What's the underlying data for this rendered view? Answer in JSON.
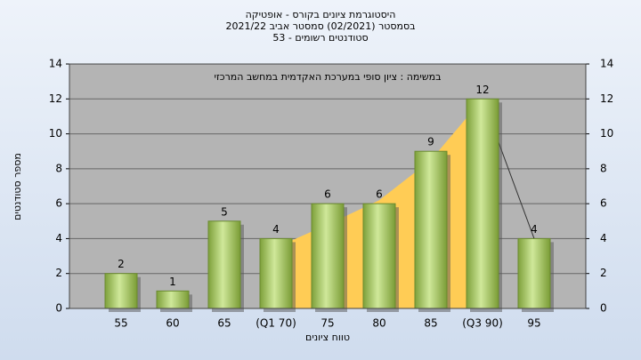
{
  "chart_data": {
    "type": "bar",
    "title_lines": [
      "היסטוגרמת ציונים בקורס - אופטיקה",
      "בסמסטר  (02/2021)  סמסטר אביב 2021/22",
      "סטודנטים רשומים - 53"
    ],
    "note": "במשימה : ציון סופי במערכת האקדמית במחשב המרכזי",
    "x_label": "טווח ציונים",
    "y_label": "מספר סטודנטים",
    "categories": [
      "55",
      "60",
      "65",
      "(Q1 70)",
      "75",
      "80",
      "85",
      "(Q3 90)",
      "95"
    ],
    "values": [
      2,
      1,
      5,
      4,
      6,
      6,
      9,
      12,
      4
    ],
    "color": "#9dc45a",
    "curve": {
      "values": [
        null,
        null,
        null,
        3.5,
        4.8,
        6.2,
        8.5,
        12,
        4
      ],
      "color": "#ffcc55"
    },
    "ylim": [
      0,
      14
    ],
    "yticks": [
      0,
      2,
      4,
      6,
      8,
      10,
      12,
      14
    ],
    "grid": true
  }
}
